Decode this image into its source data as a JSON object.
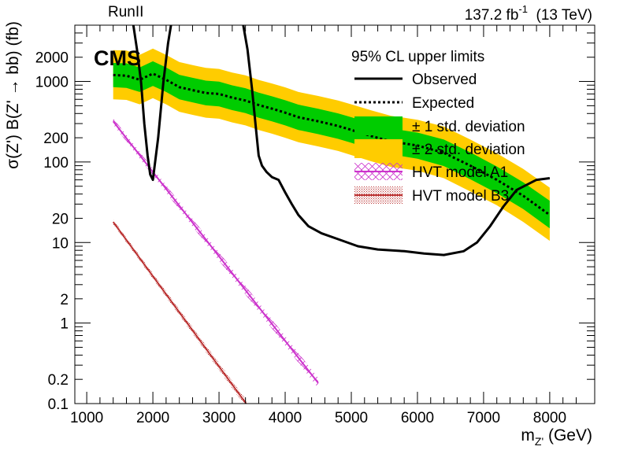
{
  "header": {
    "run_label": "RunII",
    "lumi_label": "137.2 fb",
    "lumi_sup": "-1",
    "energy_label": "(13 TeV)",
    "experiment": "CMS"
  },
  "chart_data": {
    "type": "line",
    "title": "",
    "xlabel": "m",
    "xlabel_sub": "Z'",
    "xlabel_unit": "(GeV)",
    "ylabel": "σ(Z') B(Z' → bb) (fb)",
    "xlim": [
      820,
      8680
    ],
    "ylim": [
      0.1,
      5000
    ],
    "y_scale": "log",
    "x_ticks": [
      1000,
      2000,
      3000,
      4000,
      5000,
      6000,
      7000,
      8000
    ],
    "x_tick_labels": [
      "1000",
      "2000",
      "3000",
      "4000",
      "5000",
      "6000",
      "7000",
      "8000"
    ],
    "y_ticks": [
      0.1,
      0.2,
      1,
      2,
      10,
      20,
      100,
      200,
      1000,
      2000
    ],
    "y_tick_labels": [
      "0.1",
      "0.2",
      "1",
      "2",
      "10",
      "20",
      "100",
      "200",
      "1000",
      "2000"
    ],
    "grid": false,
    "legend": {
      "title": "95% CL upper limits",
      "placement": "top-right",
      "entries": [
        "Observed",
        "Expected",
        "± 1 std. deviation",
        "± 2 std. deviation",
        "HVT model A1",
        "HVT model B3"
      ]
    },
    "series": [
      {
        "name": "Observed",
        "color": "#000000",
        "segments": [
          {
            "x": [
              1690,
              1760,
              1820,
              1870,
              1920,
              1960,
              2000,
              2080,
              2160,
              2230,
              2290
            ],
            "y": [
              6000,
              2500,
              1000,
              300,
              120,
              70,
              60,
              200,
              1000,
              3000,
              6000
            ]
          },
          {
            "x": [
              3350,
              3430,
              3500,
              3560,
              3600,
              3650,
              3720,
              3800,
              3900,
              4000,
              4100,
              4200,
              4350,
              4550,
              4800,
              5100,
              5400,
              5800,
              6100,
              6400,
              6700,
              6900,
              7100,
              7300,
              7500,
              7800,
              8000
            ],
            "y": [
              6000,
              2500,
              800,
              250,
              120,
              90,
              75,
              65,
              60,
              42,
              30,
              22,
              16,
              13,
              11,
              9,
              8.2,
              7.8,
              7.3,
              7.0,
              7.8,
              10,
              16,
              28,
              45,
              60,
              63
            ]
          }
        ]
      },
      {
        "name": "Expected",
        "color": "#000000",
        "x": [
          1400,
          1600,
          1800,
          2000,
          2200,
          2400,
          2600,
          2800,
          3000,
          3200,
          3400,
          3600,
          3800,
          4000,
          4200,
          4500,
          4800,
          5000,
          5300,
          5600,
          6000,
          6400,
          6800,
          7200,
          7600,
          8000
        ],
        "y": [
          1200,
          1180,
          1050,
          1250,
          1050,
          850,
          780,
          720,
          700,
          630,
          580,
          510,
          460,
          410,
          360,
          320,
          280,
          250,
          210,
          180,
          160,
          130,
          90,
          60,
          38,
          22
        ]
      },
      {
        "name": "± 1 std. deviation",
        "color": "#00cc00",
        "lower": [
          850,
          830,
          740,
          880,
          740,
          600,
          550,
          505,
          490,
          440,
          405,
          355,
          320,
          285,
          250,
          222,
          194,
          173,
          145,
          124,
          110,
          89,
          61,
          41,
          26,
          15
        ],
        "upper": [
          1700,
          1680,
          1490,
          1780,
          1490,
          1210,
          1110,
          1025,
          995,
          895,
          825,
          725,
          655,
          585,
          515,
          458,
          402,
          360,
          303,
          260,
          232,
          190,
          132,
          88,
          56,
          33
        ]
      },
      {
        "name": "± 2 std. deviation",
        "color": "#ffcc00",
        "lower": [
          600,
          590,
          520,
          620,
          520,
          420,
          385,
          355,
          345,
          310,
          285,
          250,
          225,
          200,
          176,
          156,
          137,
          122,
          102,
          87,
          78,
          63,
          43,
          29,
          18,
          10.5
        ],
        "upper": [
          2450,
          2420,
          2140,
          2560,
          2140,
          1740,
          1600,
          1475,
          1430,
          1290,
          1190,
          1045,
          945,
          845,
          740,
          660,
          580,
          520,
          437,
          375,
          335,
          275,
          190,
          128,
          82,
          48
        ]
      },
      {
        "name": "HVT model A1",
        "color": "#cc33cc",
        "x": [
          1400,
          4500
        ],
        "y": [
          320,
          0.18
        ]
      },
      {
        "name": "HVT model B3",
        "color": "#bb3333",
        "x": [
          1400,
          3410
        ],
        "y": [
          18,
          0.1
        ]
      }
    ]
  }
}
